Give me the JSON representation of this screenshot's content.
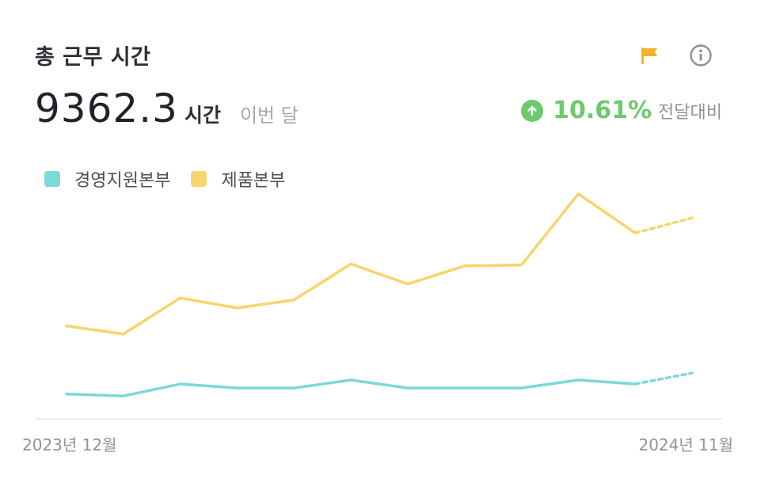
{
  "header": {
    "title": "총 근무 시간",
    "flag_icon": "flag-icon",
    "info_icon": "info-icon"
  },
  "summary": {
    "value": "9362.3",
    "unit": "시간",
    "period": "이번 달",
    "change_percent": "10.61%",
    "change_label": "전달대비",
    "change_direction": "up",
    "change_icon": "arrow-up-icon"
  },
  "colors": {
    "series_1": "#7dd8d8",
    "series_2": "#f7d56b",
    "positive": "#6cc96c",
    "flag": "#f0b429",
    "axis": "#e3e5e8"
  },
  "chart_data": {
    "type": "line",
    "x_range_labels": [
      "2023년 12월",
      "2024년 11월"
    ],
    "x": [
      "2023-12",
      "2024-01",
      "2024-02",
      "2024-03",
      "2024-04",
      "2024-05",
      "2024-06",
      "2024-07",
      "2024-08",
      "2024-09",
      "2024-10",
      "2024-11"
    ],
    "ylim": [
      0,
      1100
    ],
    "grid": false,
    "legend_position": "top-left",
    "projected_last_point": true,
    "series": [
      {
        "name": "경영지원본부",
        "color": "#7dd8d8",
        "values": [
          120,
          110,
          170,
          150,
          150,
          190,
          150,
          150,
          150,
          190,
          170,
          225
        ]
      },
      {
        "name": "제품본부",
        "color": "#f7d56b",
        "values": [
          460,
          420,
          600,
          550,
          590,
          770,
          670,
          760,
          765,
          1120,
          925,
          1000
        ]
      }
    ]
  }
}
